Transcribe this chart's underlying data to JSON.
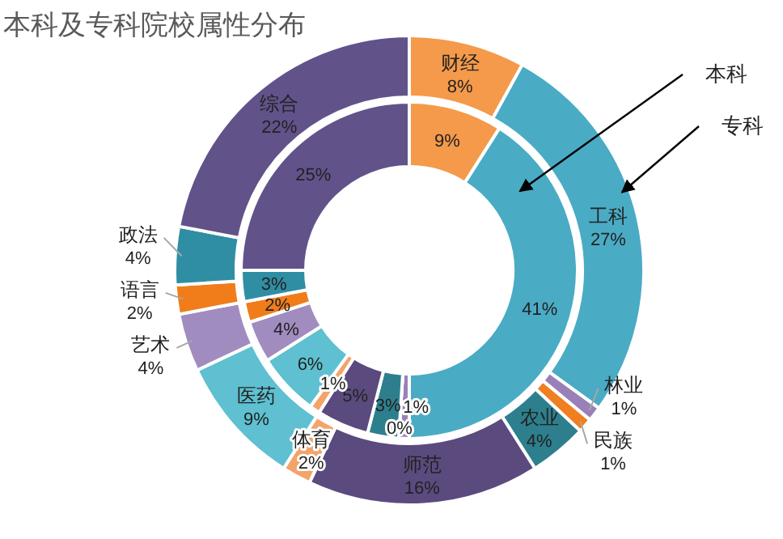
{
  "chart_data": {
    "type": "donut",
    "title": "本科及专科院校属性分布",
    "categories": [
      "财经",
      "工科",
      "林业",
      "民族",
      "农业",
      "师范",
      "体育",
      "医药",
      "艺术",
      "语言",
      "政法",
      "综合"
    ],
    "colors": [
      "#f59a4a",
      "#4aabc5",
      "#9a80b8",
      "#f07f22",
      "#2e7f8e",
      "#5b4a7e",
      "#f4a36a",
      "#5ec0d0",
      "#a18cc0",
      "#f07d1a",
      "#2f8ea3",
      "#62528a"
    ],
    "series": [
      {
        "name": "专科",
        "values": [
          8,
          27,
          1,
          1,
          4,
          16,
          2,
          9,
          4,
          2,
          4,
          22
        ],
        "value_labels": [
          "8%",
          "27%",
          "1%",
          "1%",
          "4%",
          "16%",
          "2%",
          "9%",
          "4%",
          "2%",
          "4%",
          "22%"
        ]
      },
      {
        "name": "本科",
        "values": [
          9,
          41,
          1,
          0,
          3,
          5,
          1,
          6,
          4,
          2,
          3,
          25
        ],
        "value_labels": [
          "9%",
          "41%",
          "1%",
          "0%",
          "3%",
          "5%",
          "1%",
          "6%",
          "4%",
          "2%",
          "3%",
          "25%"
        ]
      }
    ]
  }
}
